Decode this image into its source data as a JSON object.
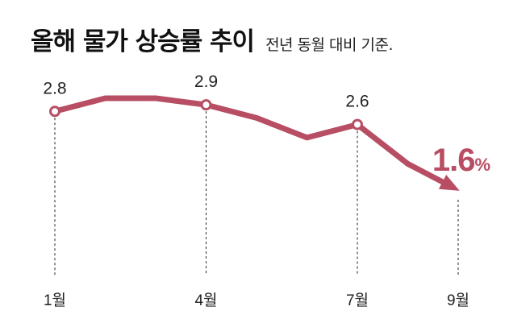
{
  "header": {
    "title": "올해 물가 상승률 추이",
    "subtitle": "전년 동월 대비 기준."
  },
  "colors": {
    "series": "#b84e63",
    "guide": "#222222",
    "text": "#222222"
  },
  "chart_data": {
    "type": "line",
    "title": "올해 물가 상승률 추이",
    "subtitle": "전년 동월 대비 기준.",
    "x": [
      1,
      2,
      3,
      4,
      5,
      6,
      7,
      8,
      9
    ],
    "values": [
      2.8,
      3.0,
      3.0,
      2.9,
      2.7,
      2.4,
      2.6,
      2.0,
      1.6
    ],
    "x_ticks": [
      {
        "x": 1,
        "label": "1월"
      },
      {
        "x": 4,
        "label": "4월"
      },
      {
        "x": 7,
        "label": "7월"
      },
      {
        "x": 9,
        "label": "9월"
      }
    ],
    "labeled_points": [
      {
        "x": 1,
        "label": "2.8"
      },
      {
        "x": 4,
        "label": "2.9"
      },
      {
        "x": 7,
        "label": "2.6"
      }
    ],
    "highlight": {
      "x": 9,
      "value": "1.6",
      "unit": "%"
    },
    "ylabel": "",
    "ylim": [
      1.6,
      3.0
    ],
    "grid": false
  }
}
